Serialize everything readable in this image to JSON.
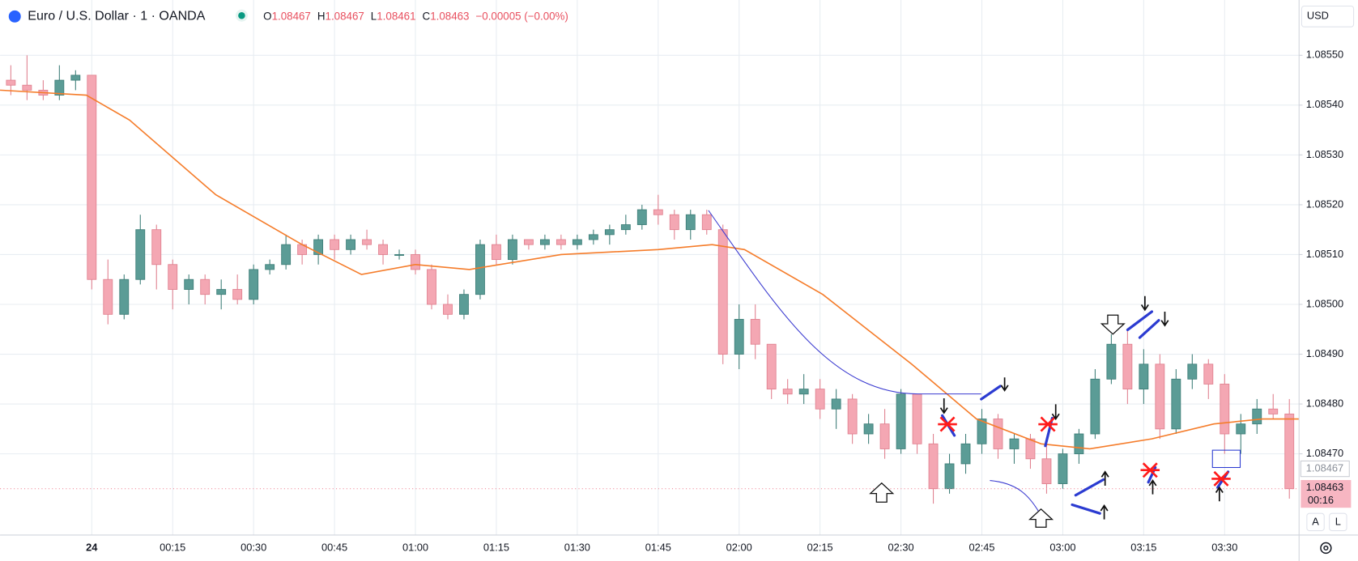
{
  "header": {
    "symbol": "Euro / U.S. Dollar · 1 · OANDA",
    "ohlc": [
      {
        "key": "O",
        "value": 1.08467
      },
      {
        "key": "H",
        "value": 1.08467
      },
      {
        "key": "L",
        "value": 1.08461
      },
      {
        "key": "C",
        "value": 1.08463
      }
    ],
    "change": "−0.00005 (−0.00%)"
  },
  "currency": "USD",
  "buttons": [
    "A",
    "L"
  ],
  "chart_data": {
    "type": "candlestick",
    "x": [
      -15,
      -12,
      -9,
      -6,
      -3,
      0,
      3,
      6,
      9,
      12,
      15,
      18,
      21,
      24,
      27,
      30,
      33,
      36,
      39,
      42,
      45,
      48,
      51,
      54,
      57,
      60,
      63,
      66,
      69,
      72,
      75,
      78,
      81,
      84,
      87,
      90,
      93,
      96,
      99,
      102,
      105,
      108,
      111,
      114,
      117,
      120,
      123,
      126,
      129,
      132,
      135,
      138,
      141,
      144,
      147,
      150,
      153,
      156,
      159,
      162,
      165,
      168,
      171,
      174,
      177,
      180,
      183,
      186,
      189,
      192,
      195,
      198,
      201,
      204,
      207,
      210,
      213,
      216,
      219,
      222
    ],
    "open": [
      1.08545,
      1.08544,
      1.08543,
      1.08542,
      1.08545,
      1.08546,
      1.08505,
      1.08498,
      1.08505,
      1.08515,
      1.08508,
      1.08503,
      1.08505,
      1.08502,
      1.08503,
      1.08501,
      1.08507,
      1.08508,
      1.08512,
      1.0851,
      1.08513,
      1.08511,
      1.08513,
      1.08512,
      1.0851,
      1.0851,
      1.08507,
      1.085,
      1.08498,
      1.08502,
      1.08512,
      1.08509,
      1.08513,
      1.08512,
      1.08513,
      1.08512,
      1.08513,
      1.08514,
      1.08515,
      1.08516,
      1.08519,
      1.08518,
      1.08515,
      1.08518,
      1.08515,
      1.0849,
      1.08497,
      1.08492,
      1.08483,
      1.08482,
      1.08483,
      1.08479,
      1.08481,
      1.08474,
      1.08476,
      1.08471,
      1.08482,
      1.08472,
      1.08463,
      1.08468,
      1.08472,
      1.08477,
      1.08471,
      1.08473,
      1.08469,
      1.08464,
      1.0847,
      1.08474,
      1.08485,
      1.08492,
      1.08483,
      1.08488,
      1.08475,
      1.08485,
      1.08488,
      1.08484,
      1.08474,
      1.08476,
      1.08479,
      1.08478
    ],
    "high": [
      1.08548,
      1.0855,
      1.08545,
      1.08548,
      1.08547,
      1.08546,
      1.08509,
      1.08506,
      1.08518,
      1.08516,
      1.08509,
      1.08506,
      1.08506,
      1.08505,
      1.08506,
      1.08508,
      1.08509,
      1.08514,
      1.08513,
      1.08514,
      1.08514,
      1.08514,
      1.08515,
      1.08513,
      1.08511,
      1.08511,
      1.08508,
      1.08502,
      1.08503,
      1.08513,
      1.08514,
      1.08514,
      1.08513,
      1.08514,
      1.08514,
      1.08514,
      1.08515,
      1.08516,
      1.08518,
      1.0852,
      1.08522,
      1.08519,
      1.08519,
      1.08519,
      1.08516,
      1.085,
      1.085,
      1.08492,
      1.08485,
      1.08486,
      1.08485,
      1.08483,
      1.08482,
      1.08478,
      1.08479,
      1.08483,
      1.08482,
      1.08474,
      1.0847,
      1.08474,
      1.08479,
      1.08478,
      1.08474,
      1.08474,
      1.08473,
      1.08471,
      1.08475,
      1.08487,
      1.08494,
      1.08495,
      1.08491,
      1.0849,
      1.08487,
      1.0849,
      1.08489,
      1.08486,
      1.08478,
      1.08481,
      1.08482,
      1.08481
    ],
    "low": [
      1.08542,
      1.08541,
      1.08541,
      1.08541,
      1.08543,
      1.08503,
      1.08496,
      1.08497,
      1.08504,
      1.08503,
      1.08499,
      1.085,
      1.085,
      1.08499,
      1.085,
      1.085,
      1.08506,
      1.08507,
      1.08508,
      1.08508,
      1.08509,
      1.0851,
      1.08511,
      1.08508,
      1.08509,
      1.08506,
      1.08499,
      1.08497,
      1.08497,
      1.08501,
      1.08508,
      1.08508,
      1.08511,
      1.08511,
      1.08511,
      1.08511,
      1.08512,
      1.08512,
      1.08514,
      1.08515,
      1.08516,
      1.08513,
      1.08513,
      1.08514,
      1.08488,
      1.08487,
      1.08489,
      1.08481,
      1.0848,
      1.0848,
      1.08477,
      1.08475,
      1.08472,
      1.08472,
      1.08469,
      1.0847,
      1.0847,
      1.0846,
      1.08462,
      1.08466,
      1.0847,
      1.08469,
      1.08468,
      1.08467,
      1.08462,
      1.08463,
      1.08468,
      1.08473,
      1.08484,
      1.0848,
      1.0848,
      1.08473,
      1.08474,
      1.08483,
      1.08481,
      1.0847,
      1.0847,
      1.08474,
      1.08477,
      1.08461
    ],
    "close": [
      1.08544,
      1.08543,
      1.08542,
      1.08545,
      1.08546,
      1.08505,
      1.08498,
      1.08505,
      1.08515,
      1.08508,
      1.08503,
      1.08505,
      1.08502,
      1.08503,
      1.08501,
      1.08507,
      1.08508,
      1.08512,
      1.0851,
      1.08513,
      1.08511,
      1.08513,
      1.08512,
      1.0851,
      1.0851,
      1.08507,
      1.085,
      1.08498,
      1.08502,
      1.08512,
      1.08509,
      1.08513,
      1.08512,
      1.08513,
      1.08512,
      1.08513,
      1.08514,
      1.08515,
      1.08516,
      1.08519,
      1.08518,
      1.08515,
      1.08518,
      1.08515,
      1.0849,
      1.08497,
      1.08492,
      1.08483,
      1.08482,
      1.08483,
      1.08479,
      1.08481,
      1.08474,
      1.08476,
      1.08471,
      1.08482,
      1.08472,
      1.08463,
      1.08468,
      1.08472,
      1.08477,
      1.08471,
      1.08473,
      1.08469,
      1.08464,
      1.0847,
      1.08474,
      1.08485,
      1.08492,
      1.08483,
      1.08488,
      1.08475,
      1.08485,
      1.08488,
      1.08484,
      1.08474,
      1.08476,
      1.08479,
      1.08478,
      1.08463
    ],
    "up_color": "#5b9c96",
    "down_color": "#f4a7b3",
    "ma": {
      "color": "#f57c2a",
      "x": [
        -17,
        -1,
        7,
        23,
        39,
        50,
        60,
        70,
        87,
        105,
        115,
        121,
        135.5,
        152,
        164,
        176,
        185,
        196.5,
        208,
        217,
        223.8
      ],
      "values": [
        1.08543,
        1.08542,
        1.08537,
        1.08522,
        1.08512,
        1.08506,
        1.08508,
        1.08507,
        1.0851,
        1.08511,
        1.08512,
        1.08511,
        1.08502,
        1.08488,
        1.08477,
        1.08472,
        1.08471,
        1.08473,
        1.08476,
        1.08477,
        1.08477
      ]
    },
    "xlim": [
      -17,
      223.8
    ],
    "xticks": [
      {
        "value": 0,
        "label": "24"
      },
      {
        "value": 15,
        "label": "00:15"
      },
      {
        "value": 30,
        "label": "00:30"
      },
      {
        "value": 45,
        "label": "00:45"
      },
      {
        "value": 60,
        "label": "01:00"
      },
      {
        "value": 75,
        "label": "01:15"
      },
      {
        "value": 90,
        "label": "01:30"
      },
      {
        "value": 105,
        "label": "01:45"
      },
      {
        "value": 120,
        "label": "02:00"
      },
      {
        "value": 135,
        "label": "02:15"
      },
      {
        "value": 150,
        "label": "02:30"
      },
      {
        "value": 165,
        "label": "02:45"
      },
      {
        "value": 180,
        "label": "03:00"
      },
      {
        "value": 195,
        "label": "03:15"
      },
      {
        "value": 210,
        "label": "03:30"
      }
    ],
    "ylim": [
      1.084537,
      1.085611
    ],
    "yticks": [
      {
        "value": 1.0855,
        "label": "1.08550"
      },
      {
        "value": 1.0854,
        "label": "1.08540"
      },
      {
        "value": 1.0853,
        "label": "1.08530"
      },
      {
        "value": 1.0852,
        "label": "1.08520"
      },
      {
        "value": 1.0851,
        "label": "1.08510"
      },
      {
        "value": 1.085,
        "label": "1.08500"
      },
      {
        "value": 1.0849,
        "label": "1.08490"
      },
      {
        "value": 1.0848,
        "label": "1.08480"
      },
      {
        "value": 1.0847,
        "label": "1.08470"
      }
    ],
    "grid": true,
    "marker_price": 1.08467,
    "current_price": 1.08463,
    "countdown": "00:16"
  }
}
